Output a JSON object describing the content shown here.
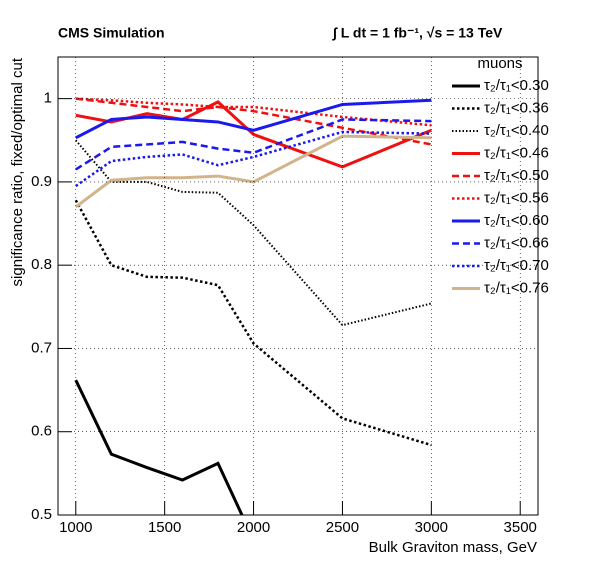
{
  "chart_data": {
    "type": "line",
    "title": "CMS Simulation",
    "subtitle": "∫ L dt = 1 fb⁻¹,  √s = 13 TeV",
    "xlabel": "Bulk Graviton mass, GeV",
    "ylabel": "significance ratio, fixed/optimal cut",
    "legend_title": "muons",
    "x": [
      1000,
      1200,
      1400,
      1600,
      1800,
      2000,
      2500,
      3000
    ],
    "xlim": [
      900,
      3600
    ],
    "xticks": [
      1000,
      1500,
      2000,
      2500,
      3000,
      3500
    ],
    "ylim": [
      0.5,
      1.05
    ],
    "yticks": [
      0.5,
      0.6,
      0.7,
      0.8,
      0.9,
      1
    ],
    "grid": true,
    "legend": "right",
    "series": [
      {
        "name": "τ₂/τ₁<0.30",
        "color": "#000000",
        "dash": "solid",
        "values": [
          0.662,
          0.573,
          0.557,
          0.542,
          0.562,
          0.47,
          null,
          null
        ]
      },
      {
        "name": "τ₂/τ₁<0.36",
        "color": "#000000",
        "dash": "dot",
        "values": [
          0.878,
          0.8,
          0.786,
          0.785,
          0.776,
          0.706,
          0.616,
          0.584
        ]
      },
      {
        "name": "τ₂/τ₁<0.40",
        "color": "#000000",
        "dash": "finedot",
        "values": [
          0.95,
          0.9,
          0.9,
          0.888,
          0.887,
          0.848,
          0.728,
          0.754
        ]
      },
      {
        "name": "τ₂/τ₁<0.46",
        "color": "#ee1111",
        "dash": "solid",
        "values": [
          0.98,
          0.972,
          0.982,
          0.975,
          0.996,
          0.957,
          0.918,
          0.962
        ]
      },
      {
        "name": "τ₂/τ₁<0.50",
        "color": "#ee1111",
        "dash": "dash",
        "values": [
          1.0,
          0.995,
          0.99,
          0.985,
          0.99,
          0.985,
          0.965,
          0.945
        ]
      },
      {
        "name": "τ₂/τ₁<0.56",
        "color": "#ee1111",
        "dash": "dot",
        "values": [
          1.0,
          0.998,
          0.995,
          0.993,
          0.99,
          0.99,
          0.978,
          0.968
        ]
      },
      {
        "name": "τ₂/τ₁<0.60",
        "color": "#1a1aee",
        "dash": "solid",
        "values": [
          0.953,
          0.975,
          0.978,
          0.975,
          0.972,
          0.962,
          0.993,
          0.998
        ]
      },
      {
        "name": "τ₂/τ₁<0.66",
        "color": "#1a1aee",
        "dash": "dash",
        "values": [
          0.915,
          0.942,
          0.945,
          0.948,
          0.94,
          0.935,
          0.975,
          0.973
        ]
      },
      {
        "name": "τ₂/τ₁<0.70",
        "color": "#1a1aee",
        "dash": "dot",
        "values": [
          0.895,
          0.925,
          0.93,
          0.933,
          0.92,
          0.93,
          0.96,
          0.958
        ]
      },
      {
        "name": "τ₂/τ₁<0.76",
        "color": "#d2b48c",
        "dash": "solid",
        "values": [
          0.87,
          0.902,
          0.905,
          0.905,
          0.907,
          0.9,
          0.955,
          0.953
        ]
      }
    ]
  }
}
